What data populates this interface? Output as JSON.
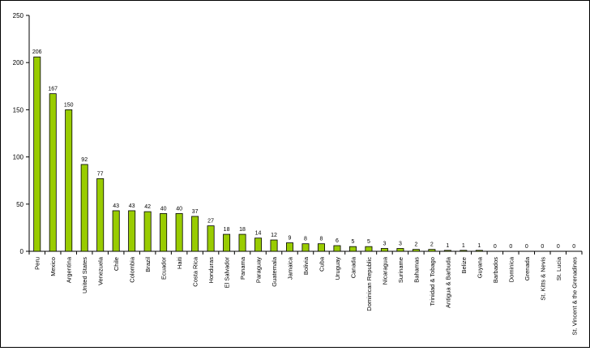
{
  "chart_data": {
    "type": "bar",
    "title": "",
    "xlabel": "",
    "ylabel": "",
    "ylim": [
      0,
      250
    ],
    "yticks": [
      0,
      50,
      100,
      150,
      200,
      250
    ],
    "grid": false,
    "legend": "none",
    "bar_color": "#99CC00",
    "categories": [
      "Peru",
      "Mexico",
      "Argentina",
      "United States",
      "Venezuela",
      "Chile",
      "Colombia",
      "Brazil",
      "Ecuador",
      "Haiti",
      "Costa Rica",
      "Honduras",
      "El Salvador",
      "Panama",
      "Paraguay",
      "Guatemala",
      "Jamaica",
      "Bolivia",
      "Cuba",
      "Uruguay",
      "Canada",
      "Dominican Republic",
      "Nicaragua",
      "Suriname",
      "Bahamas",
      "Trinidad & Tobago",
      "Antigua & Barbuda",
      "Belize",
      "Guyana",
      "Barbados",
      "Dominica",
      "Grenada",
      "St. Kitts & Nevis",
      "St. Lucia",
      "St. Vincent & the Grenadines"
    ],
    "values": [
      206,
      167,
      150,
      92,
      77,
      43,
      43,
      42,
      40,
      40,
      37,
      27,
      18,
      18,
      14,
      12,
      9,
      8,
      8,
      6,
      5,
      5,
      3,
      3,
      2,
      2,
      1,
      1,
      1,
      0,
      0,
      0,
      0,
      0,
      0
    ]
  }
}
